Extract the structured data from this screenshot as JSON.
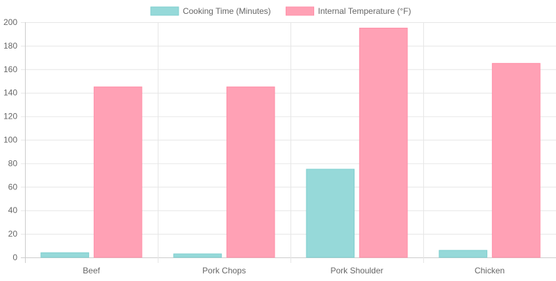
{
  "chart_data": {
    "type": "bar",
    "categories": [
      "Beef",
      "Pork Chops",
      "Pork Shoulder",
      "Chicken"
    ],
    "series": [
      {
        "name": "Cooking Time (Minutes)",
        "values": [
          4,
          3,
          75,
          6
        ],
        "color": "#96d9d9",
        "border": "#7fcfcf"
      },
      {
        "name": "Internal Temperature (°F)",
        "values": [
          145,
          145,
          195,
          165
        ],
        "color": "#ffa1b5",
        "border": "#ff8fa8"
      }
    ],
    "ylim": [
      0,
      200
    ],
    "yticks": [
      0,
      20,
      40,
      60,
      80,
      100,
      120,
      140,
      160,
      180,
      200
    ],
    "grid": true,
    "legend_position": "top-center"
  }
}
